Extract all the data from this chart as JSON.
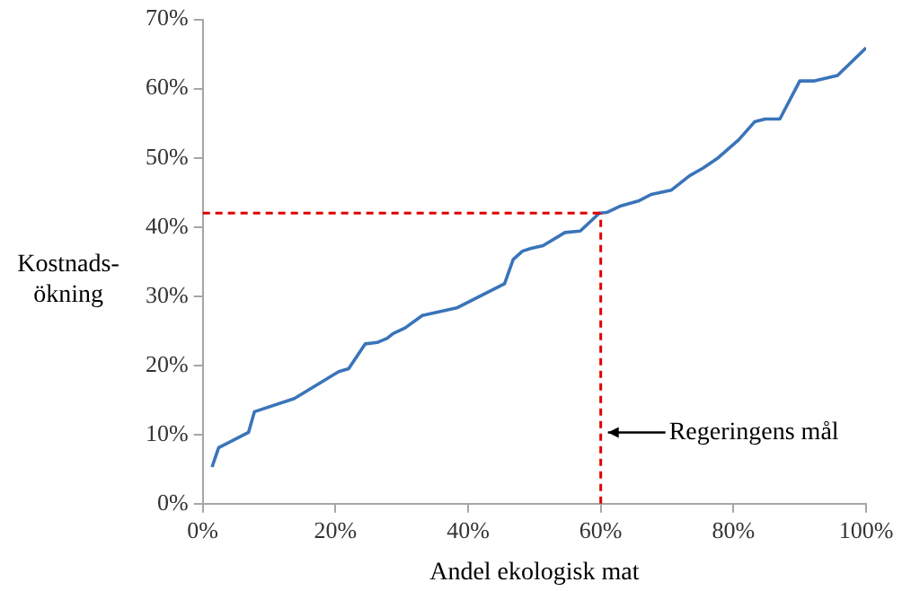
{
  "chart_data": {
    "type": "line",
    "xlabel": "Andel ekologisk mat",
    "ylabel": "Kostnads-\nökning",
    "x": [
      1.4,
      2.4,
      6.9,
      7.8,
      13.8,
      20.5,
      22,
      24.5,
      26.3,
      27.8,
      28.7,
      30.5,
      33.1,
      38.3,
      45.5,
      46.8,
      48.2,
      49.5,
      51.3,
      54.6,
      56.9,
      59.8,
      60.9,
      62.9,
      65.8,
      67.6,
      70.6,
      73.4,
      75.4,
      77.7,
      80.8,
      83.2,
      84.8,
      87,
      90,
      92.1,
      95.7,
      100
    ],
    "series": [
      {
        "color": "#3a74b9",
        "values": [
          5.3,
          8.1,
          10.3,
          13.3,
          15.2,
          19.1,
          19.5,
          23.1,
          23.3,
          23.9,
          24.6,
          25.4,
          27.2,
          28.3,
          31.8,
          35.3,
          36.5,
          36.9,
          37.3,
          39.2,
          39.4,
          42.0,
          42.1,
          43.0,
          43.8,
          44.7,
          45.3,
          47.4,
          48.5,
          50.0,
          52.6,
          55.2,
          55.6,
          55.6,
          61.1,
          61.1,
          61.9,
          65.9
        ]
      }
    ],
    "xlim": [
      0,
      100
    ],
    "ylim": [
      0,
      70
    ],
    "xticks": [
      {
        "value": 0,
        "label": "0%"
      },
      {
        "value": 20,
        "label": "20%"
      },
      {
        "value": 40,
        "label": "40%"
      },
      {
        "value": 60,
        "label": "60%"
      },
      {
        "value": 80,
        "label": "80%"
      },
      {
        "value": 100,
        "label": "100%"
      }
    ],
    "yticks": [
      {
        "value": 0,
        "label": "0%"
      },
      {
        "value": 10,
        "label": "10%"
      },
      {
        "value": 20,
        "label": "20%"
      },
      {
        "value": 30,
        "label": "30%"
      },
      {
        "value": 40,
        "label": "40%"
      },
      {
        "value": 50,
        "label": "50%"
      },
      {
        "value": 60,
        "label": "60%"
      },
      {
        "value": 70,
        "label": "70%"
      }
    ],
    "ref_lines": [
      {
        "axis": "y",
        "value": 42,
        "color": "#e00000",
        "line_style": "dashed"
      },
      {
        "axis": "x",
        "value": 60,
        "color": "#e00000",
        "line_style": "dashed",
        "label": "Regeringens mål"
      }
    ],
    "grid": false,
    "legend": false,
    "marker": "none",
    "line_style": "solid"
  }
}
